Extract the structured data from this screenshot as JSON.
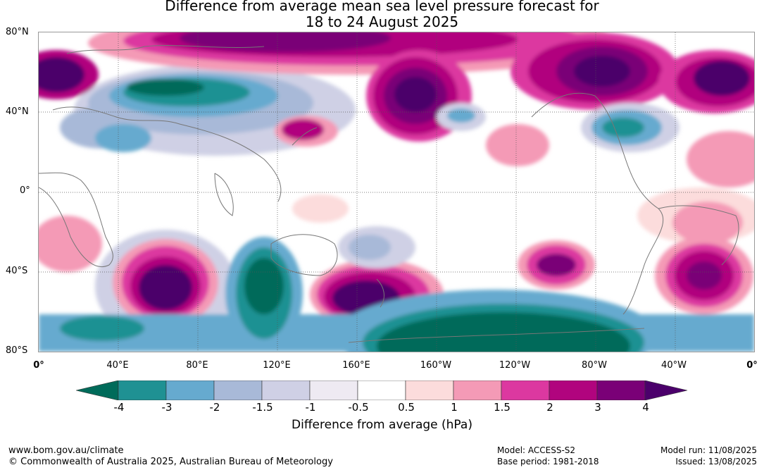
{
  "title_line1": "Difference from average mean sea level pressure forecast for",
  "title_line2": "18 to 24 August 2025",
  "lat_labels": [
    "80°N",
    "40°N",
    "0°",
    "40°S",
    "80°S"
  ],
  "lon_labels": [
    "0°",
    "40°E",
    "80°E",
    "120°E",
    "160°E",
    "160°W",
    "120°W",
    "80°W",
    "40°W",
    "0°"
  ],
  "colorbar": {
    "ticks": [
      "-4",
      "-3",
      "-2",
      "-1.5",
      "-1",
      "-0.5",
      "0.5",
      "1",
      "1.5",
      "2",
      "3",
      "4"
    ],
    "colors": [
      "#006b5a",
      "#1f9193",
      "#66aacf",
      "#a8b9d8",
      "#cfd0e5",
      "#eeeaf2",
      "#ffffff",
      "#fcdcdc",
      "#f49ab6",
      "#dc38a0",
      "#b1047e",
      "#7a0077",
      "#4b006b"
    ],
    "label": "Difference from average (hPa)"
  },
  "footer": {
    "website": "www.bom.gov.au/climate",
    "copyright": "© Commonwealth of Australia 2025, Australian Bureau of Meteorology",
    "model": "Model: ACCESS-S2",
    "base_period": "Base period: 1981-2018",
    "model_run": "Model run: 11/08/2025",
    "issued": "Issued: 13/08/2025"
  }
}
